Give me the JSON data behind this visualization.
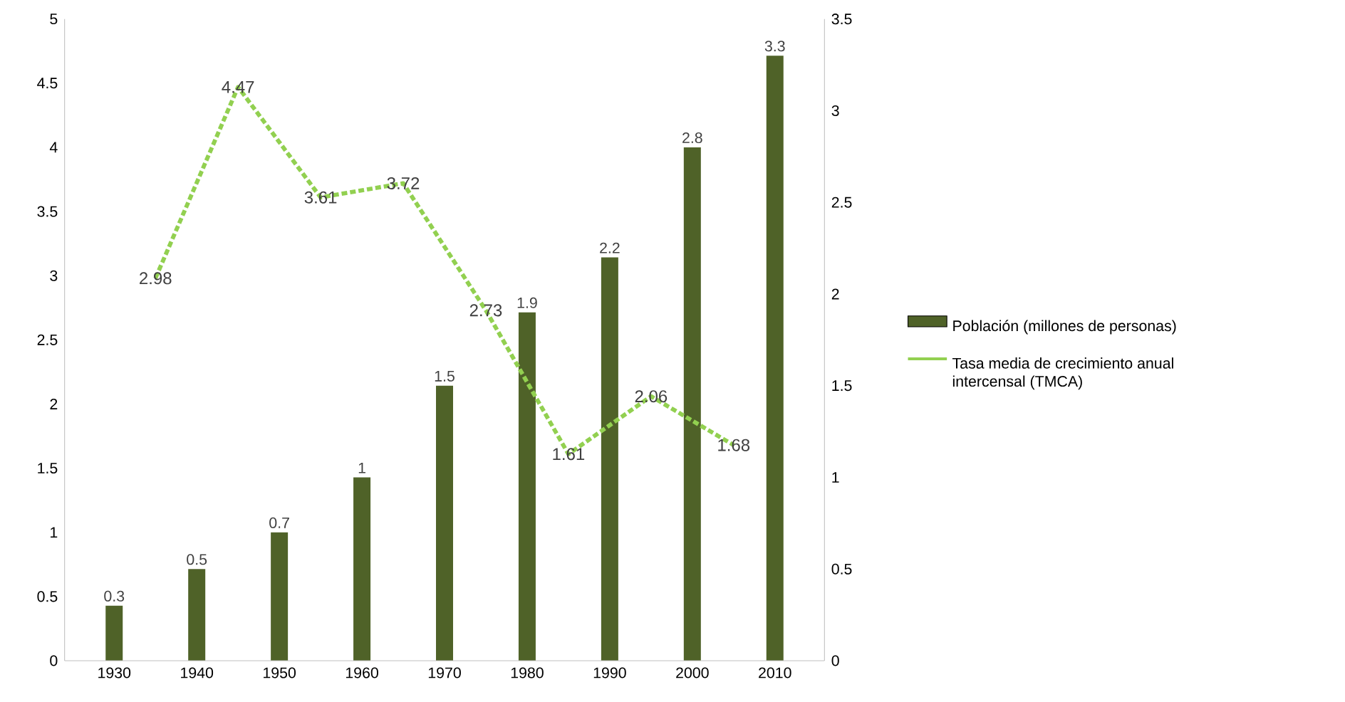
{
  "chart_data": {
    "type": "bar",
    "x": [
      1930,
      1940,
      1950,
      1960,
      1970,
      1980,
      1990,
      2000,
      2010
    ],
    "xlim": [
      1924,
      2016
    ],
    "xticks": [
      1930,
      1940,
      1950,
      1960,
      1970,
      1980,
      1990,
      2000,
      2010
    ],
    "ylim": [
      0,
      5
    ],
    "yticks": [
      0,
      0.5,
      1,
      1.5,
      2,
      2.5,
      3,
      3.5,
      4,
      4.5,
      5
    ],
    "y2lim": [
      0,
      3.5
    ],
    "y2ticks": [
      0,
      0.5,
      1,
      1.5,
      2,
      2.5,
      3,
      3.5
    ],
    "legend": "right",
    "data_labels": true,
    "series": [
      {
        "name": "Población (millones de personas)",
        "axis": "y2",
        "color": "#4f6228",
        "values": [
          0.3,
          0.5,
          0.7,
          1,
          1.5,
          1.9,
          2.2,
          2.8,
          3.3
        ]
      },
      {
        "name": "Tasa media de crecimiento anual intercensal (TMCA)",
        "type": "line",
        "axis": "y",
        "x": [
          1935,
          1945,
          1955,
          1965,
          1975,
          1985,
          1995,
          2005
        ],
        "color": "#92d050",
        "line_style": "dashed",
        "marker": "none",
        "values": [
          2.98,
          4.47,
          3.61,
          3.72,
          2.73,
          1.61,
          2.06,
          1.68
        ]
      }
    ]
  }
}
